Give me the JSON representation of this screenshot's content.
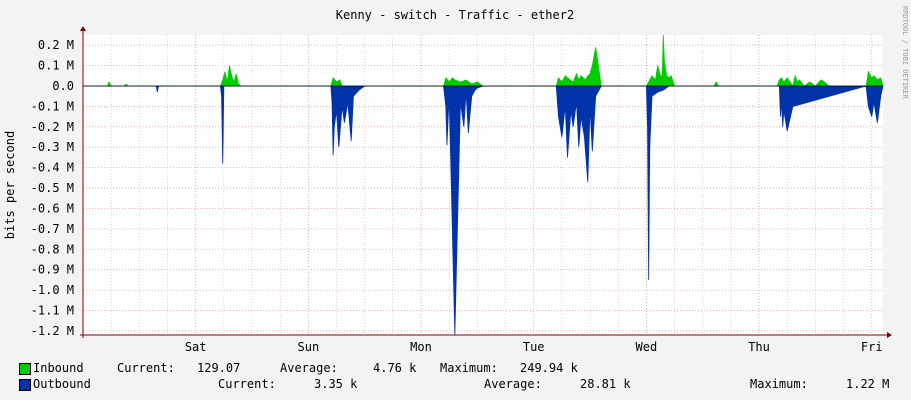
{
  "chart_data": {
    "type": "area",
    "title": "Kenny - switch - Traffic - ether2",
    "ylabel": "bits per second",
    "watermark": "RRDTOOL / TOBI OETIKER",
    "ylim": [
      -1.22,
      0.25
    ],
    "y_unit_note": "M",
    "y_ticks": [
      "0.2 M",
      "0.1 M",
      "0.0",
      "-0.1 M",
      "-0.2 M",
      "-0.3 M",
      "-0.4 M",
      "-0.5 M",
      "-0.6 M",
      "-0.7 M",
      "-0.8 M",
      "-0.9 M",
      "-1.0 M",
      "-1.1 M",
      "-1.2 M"
    ],
    "y_tick_values": [
      0.2,
      0.1,
      0.0,
      -0.1,
      -0.2,
      -0.3,
      -0.4,
      -0.5,
      -0.6,
      -0.7,
      -0.8,
      -0.9,
      -1.0,
      -1.1,
      -1.2
    ],
    "x_ticks": [
      "Sat",
      "Sun",
      "Mon",
      "Tue",
      "Wed",
      "Thu",
      "Fri"
    ],
    "x_tick_days": [
      1,
      2,
      3,
      4,
      5,
      6,
      7
    ],
    "xlim_days": [
      0.0,
      7.1
    ],
    "grid": true,
    "colors": {
      "inbound": "#00cc00",
      "outbound": "#0033aa",
      "grid": "#e0a0a0",
      "axis": "#800000",
      "background": "#ffffff",
      "frame": "#f3f3f3"
    },
    "series": [
      {
        "name": "Inbound",
        "x_days": [
          0.0,
          0.22,
          0.23,
          0.25,
          0.37,
          0.38,
          0.4,
          0.78,
          1.22,
          1.24,
          1.26,
          1.28,
          1.3,
          1.32,
          1.34,
          1.36,
          1.38,
          1.4,
          2.2,
          2.22,
          2.25,
          2.28,
          2.3,
          3.2,
          3.22,
          3.25,
          3.28,
          3.3,
          3.35,
          3.4,
          3.45,
          3.5,
          3.55,
          4.2,
          4.22,
          4.25,
          4.28,
          4.3,
          4.35,
          4.38,
          4.4,
          4.42,
          4.44,
          4.46,
          4.48,
          4.5,
          4.52,
          4.55,
          4.6,
          5.0,
          5.05,
          5.08,
          5.1,
          5.12,
          5.14,
          5.15,
          5.16,
          5.18,
          5.2,
          5.22,
          5.25,
          5.6,
          5.62,
          5.64,
          6.16,
          6.18,
          6.2,
          6.22,
          6.25,
          6.3,
          6.32,
          6.34,
          6.36,
          6.4,
          6.45,
          6.5,
          6.55,
          6.58,
          6.6,
          6.62,
          6.95,
          6.97,
          7.0,
          7.02,
          7.05,
          7.08,
          7.1
        ],
        "values": [
          0,
          0,
          0.02,
          0,
          0,
          0.01,
          0,
          0,
          0,
          0.03,
          0.07,
          0.02,
          0.1,
          0.05,
          0.02,
          0.06,
          0.01,
          0,
          0,
          0.04,
          0.02,
          0.03,
          0,
          0,
          0.04,
          0.02,
          0.04,
          0.03,
          0.02,
          0.03,
          0.01,
          0.02,
          0,
          0,
          0.04,
          0.02,
          0.05,
          0.04,
          0.02,
          0.06,
          0.03,
          0.05,
          0.04,
          0.03,
          0.05,
          0.06,
          0.1,
          0.19,
          0,
          0,
          0.05,
          0.03,
          0.1,
          0.06,
          0.04,
          0.25,
          0.12,
          0.05,
          0.04,
          0.05,
          0,
          0,
          0.02,
          0,
          0,
          0.03,
          0.04,
          0.02,
          0.04,
          0,
          0.05,
          0.02,
          0.03,
          0,
          0.02,
          0,
          0.03,
          0.02,
          0.01,
          0,
          0,
          0.07,
          0.04,
          0.05,
          0.03,
          0.04,
          0
        ]
      },
      {
        "name": "Outbound",
        "x_days": [
          0.0,
          0.65,
          0.66,
          0.67,
          1.22,
          1.23,
          1.24,
          1.25,
          2.2,
          2.21,
          2.22,
          2.23,
          2.25,
          2.27,
          2.3,
          2.32,
          2.35,
          2.38,
          2.4,
          2.45,
          2.5,
          3.2,
          3.22,
          3.23,
          3.25,
          3.3,
          3.35,
          3.38,
          3.4,
          3.42,
          3.45,
          3.48,
          3.5,
          3.55,
          4.2,
          4.22,
          4.25,
          4.28,
          4.3,
          4.33,
          4.35,
          4.38,
          4.4,
          4.42,
          4.45,
          4.48,
          4.5,
          4.52,
          4.55,
          4.58,
          4.6,
          5.0,
          5.01,
          5.02,
          5.03,
          5.05,
          5.1,
          5.15,
          5.2,
          6.18,
          6.19,
          6.2,
          6.21,
          6.22,
          6.25,
          6.3,
          6.95,
          6.97,
          7.0,
          7.02,
          7.05,
          7.08,
          7.1
        ],
        "values": [
          0,
          0,
          -0.03,
          0,
          0,
          -0.05,
          -0.38,
          0,
          0,
          -0.08,
          -0.34,
          -0.2,
          -0.12,
          -0.3,
          -0.1,
          -0.18,
          -0.08,
          -0.27,
          -0.05,
          -0.02,
          0,
          0,
          -0.1,
          -0.29,
          -0.05,
          -1.22,
          -0.08,
          -0.2,
          -0.03,
          -0.23,
          -0.05,
          -0.02,
          -0.01,
          0,
          0,
          -0.15,
          -0.25,
          -0.1,
          -0.35,
          -0.12,
          -0.2,
          -0.08,
          -0.3,
          -0.15,
          -0.25,
          -0.47,
          -0.1,
          -0.32,
          -0.05,
          -0.02,
          0,
          0,
          -0.2,
          -0.95,
          -0.3,
          -0.05,
          -0.03,
          -0.02,
          0,
          0,
          -0.15,
          -0.08,
          -0.2,
          -0.12,
          -0.22,
          -0.1,
          0,
          -0.1,
          -0.15,
          -0.08,
          -0.18,
          -0.05,
          0
        ]
      }
    ]
  },
  "legend": [
    {
      "label": "Inbound",
      "current_label": "Current:",
      "current": "129.07",
      "average_label": "Average:",
      "average": "4.76 k",
      "maximum_label": "Maximum:",
      "maximum": "249.94 k"
    },
    {
      "label": "Outbound",
      "current_label": "Current:",
      "current": "3.35 k",
      "average_label": "Average:",
      "average": "28.81 k",
      "maximum_label": "Maximum:",
      "maximum": "1.22 M"
    }
  ]
}
